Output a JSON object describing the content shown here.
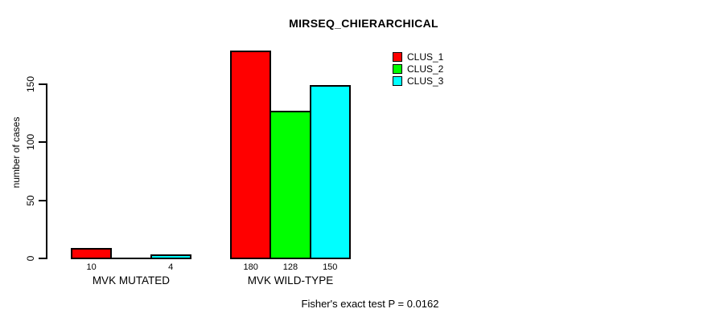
{
  "chart_data": {
    "type": "bar",
    "title": "MIRSEQ_CHIERARCHICAL",
    "ylabel": "number of cases",
    "xlabel": "",
    "categories": [
      "MVK MUTATED",
      "MVK WILD-TYPE"
    ],
    "series": [
      {
        "name": "CLUS_1",
        "color": "#ff0000",
        "values": [
          10,
          180
        ]
      },
      {
        "name": "CLUS_2",
        "color": "#00ff00",
        "values": [
          0,
          128
        ]
      },
      {
        "name": "CLUS_3",
        "color": "#00ffff",
        "values": [
          4,
          150
        ]
      }
    ],
    "bar_value_labels": [
      [
        "10",
        "",
        "4"
      ],
      [
        "180",
        "128",
        "150"
      ]
    ],
    "yticks": [
      0,
      50,
      100,
      150
    ],
    "ylim": [
      0,
      185
    ],
    "grid": false,
    "legend_position": "top-right",
    "legend": [
      "CLUS_1",
      "CLUS_2",
      "CLUS_3"
    ],
    "annotation": "Fisher's exact test P = 0.0162"
  }
}
